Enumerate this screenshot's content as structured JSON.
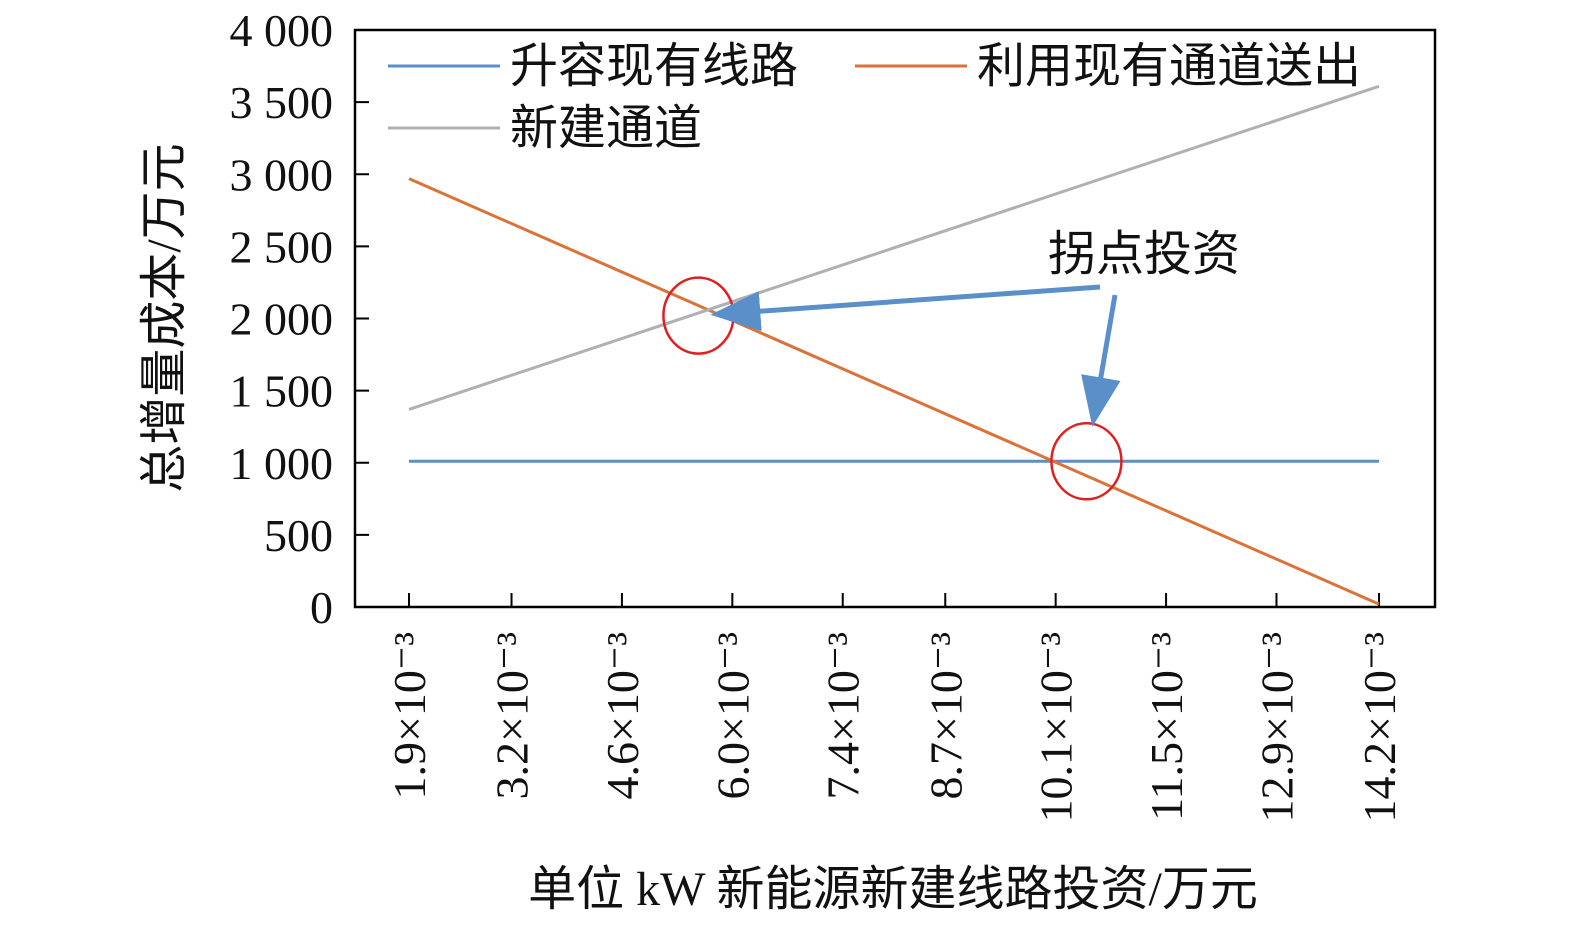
{
  "chart_data": {
    "type": "line",
    "title": "",
    "xlabel": "单位 kW 新能源新建线路投资/万元",
    "ylabel": "总增量成本/万元",
    "x_ticks": [
      "1.9×10⁻³",
      "3.2×10⁻³",
      "4.6×10⁻³",
      "6.0×10⁻³",
      "7.4×10⁻³",
      "8.7×10⁻³",
      "10.1×10⁻³",
      "11.5×10⁻³",
      "12.9×10⁻³",
      "14.2×10⁻³"
    ],
    "x_tick_values": [
      0.0019,
      0.0032,
      0.0046,
      0.006,
      0.0074,
      0.0087,
      0.0101,
      0.0115,
      0.0129,
      0.0142
    ],
    "y_ticks": [
      "0",
      "500",
      "1 000",
      "1 500",
      "2 000",
      "2 500",
      "3 000",
      "3 500",
      "4 000"
    ],
    "ylim": [
      0,
      4000
    ],
    "grid": false,
    "legend_position": "top",
    "series": [
      {
        "name": "升容现有线路",
        "color": "#5B8FC9",
        "x": [
          0.0019,
          0.0142
        ],
        "y": [
          1010,
          1010
        ]
      },
      {
        "name": "利用现有通道送出",
        "color": "#D9733A",
        "x": [
          0.0019,
          0.0142
        ],
        "y": [
          2970,
          20
        ]
      },
      {
        "name": "新建通道",
        "color": "#B0B0B0",
        "x": [
          0.0019,
          0.0142
        ],
        "y": [
          1370,
          3610
        ]
      }
    ],
    "annotations": {
      "label": "拐点投资",
      "arrow_color": "#5B8FC9",
      "circle_color": "#E02020",
      "points": [
        {
          "x": 0.00557,
          "y": 2020
        },
        {
          "x": 0.01049,
          "y": 1010
        }
      ]
    }
  }
}
